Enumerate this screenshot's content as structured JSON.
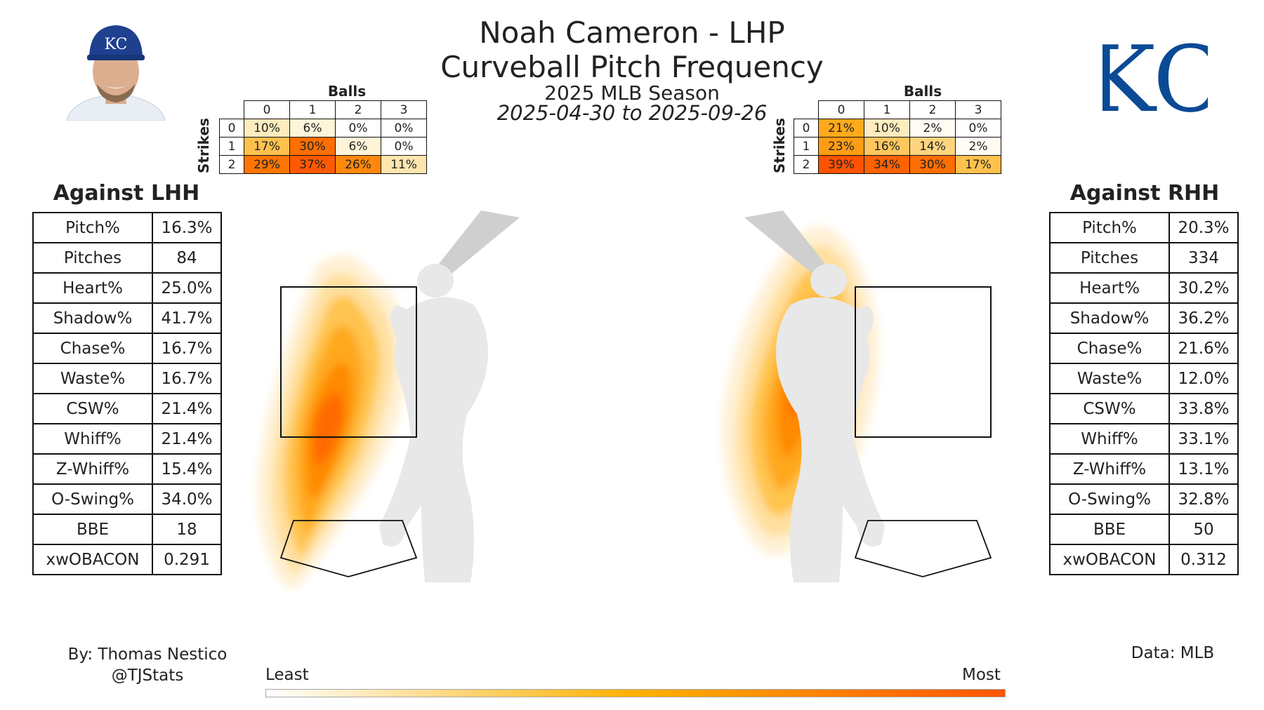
{
  "header": {
    "title_line1": "Noah Cameron - LHP",
    "title_line2": "Curveball Pitch Frequency",
    "season": "2025 MLB Season",
    "date_range": "2025-04-30 to 2025-09-26"
  },
  "team_logo_text": "KC",
  "cap_logo_text": "KC",
  "count_grid_labels": {
    "balls": "Balls",
    "strikes": "Strikes"
  },
  "vs_lhh": {
    "title": "Against LHH",
    "count_grid": {
      "balls": [
        "0",
        "1",
        "2",
        "3"
      ],
      "strikes": [
        "0",
        "1",
        "2"
      ],
      "cells": [
        [
          "10%",
          "6%",
          "0%",
          "0%"
        ],
        [
          "17%",
          "30%",
          "6%",
          "0%"
        ],
        [
          "29%",
          "37%",
          "26%",
          "11%"
        ]
      ],
      "values": [
        [
          10,
          6,
          0,
          0
        ],
        [
          17,
          30,
          6,
          0
        ],
        [
          29,
          37,
          26,
          11
        ]
      ]
    },
    "stats": [
      {
        "label": "Pitch%",
        "value": "16.3%"
      },
      {
        "label": "Pitches",
        "value": "84"
      },
      {
        "label": "Heart%",
        "value": "25.0%"
      },
      {
        "label": "Shadow%",
        "value": "41.7%"
      },
      {
        "label": "Chase%",
        "value": "16.7%"
      },
      {
        "label": "Waste%",
        "value": "16.7%"
      },
      {
        "label": "CSW%",
        "value": "21.4%"
      },
      {
        "label": "Whiff%",
        "value": "21.4%"
      },
      {
        "label": "Z-Whiff%",
        "value": "15.4%"
      },
      {
        "label": "O-Swing%",
        "value": "34.0%"
      },
      {
        "label": "BBE",
        "value": "18"
      },
      {
        "label": "xwOBACON",
        "value": "0.291"
      }
    ]
  },
  "vs_rhh": {
    "title": "Against RHH",
    "count_grid": {
      "balls": [
        "0",
        "1",
        "2",
        "3"
      ],
      "strikes": [
        "0",
        "1",
        "2"
      ],
      "cells": [
        [
          "21%",
          "10%",
          "2%",
          "0%"
        ],
        [
          "23%",
          "16%",
          "14%",
          "2%"
        ],
        [
          "39%",
          "34%",
          "30%",
          "17%"
        ]
      ],
      "values": [
        [
          21,
          10,
          2,
          0
        ],
        [
          23,
          16,
          14,
          2
        ],
        [
          39,
          34,
          30,
          17
        ]
      ]
    },
    "stats": [
      {
        "label": "Pitch%",
        "value": "20.3%"
      },
      {
        "label": "Pitches",
        "value": "334"
      },
      {
        "label": "Heart%",
        "value": "30.2%"
      },
      {
        "label": "Shadow%",
        "value": "36.2%"
      },
      {
        "label": "Chase%",
        "value": "21.6%"
      },
      {
        "label": "Waste%",
        "value": "12.0%"
      },
      {
        "label": "CSW%",
        "value": "33.8%"
      },
      {
        "label": "Whiff%",
        "value": "33.1%"
      },
      {
        "label": "Z-Whiff%",
        "value": "13.1%"
      },
      {
        "label": "O-Swing%",
        "value": "32.8%"
      },
      {
        "label": "BBE",
        "value": "50"
      },
      {
        "label": "xwOBACON",
        "value": "0.312"
      }
    ]
  },
  "colorbar": {
    "least": "Least",
    "most": "Most",
    "start_color": "#ffffff",
    "mid_color": "#ffb000",
    "end_color": "#ff5500"
  },
  "footer": {
    "byline": "By: Thomas Nestico",
    "handle": "@TJStats",
    "source": "Data: MLB"
  },
  "colors": {
    "team_blue": "#004687",
    "heat_low": "#fff3d6",
    "heat_mid": "#ffa500",
    "heat_high": "#ff6a00",
    "silhouette": "#e8e8e8"
  },
  "chart_data": [
    {
      "type": "heatmap",
      "title": "Against LHH",
      "xlabel": "Balls",
      "ylabel": "Strikes",
      "categories": [
        "0",
        "1",
        "2",
        "3"
      ],
      "series": [
        {
          "name": "0",
          "values": [
            10,
            6,
            0,
            0
          ]
        },
        {
          "name": "1",
          "values": [
            17,
            30,
            6,
            0
          ]
        },
        {
          "name": "2",
          "values": [
            29,
            37,
            26,
            11
          ]
        }
      ]
    },
    {
      "type": "heatmap",
      "title": "Against RHH",
      "xlabel": "Balls",
      "ylabel": "Strikes",
      "categories": [
        "0",
        "1",
        "2",
        "3"
      ],
      "series": [
        {
          "name": "0",
          "values": [
            21,
            10,
            2,
            0
          ]
        },
        {
          "name": "1",
          "values": [
            23,
            16,
            14,
            2
          ]
        },
        {
          "name": "2",
          "values": [
            39,
            34,
            30,
            17
          ]
        }
      ]
    }
  ]
}
